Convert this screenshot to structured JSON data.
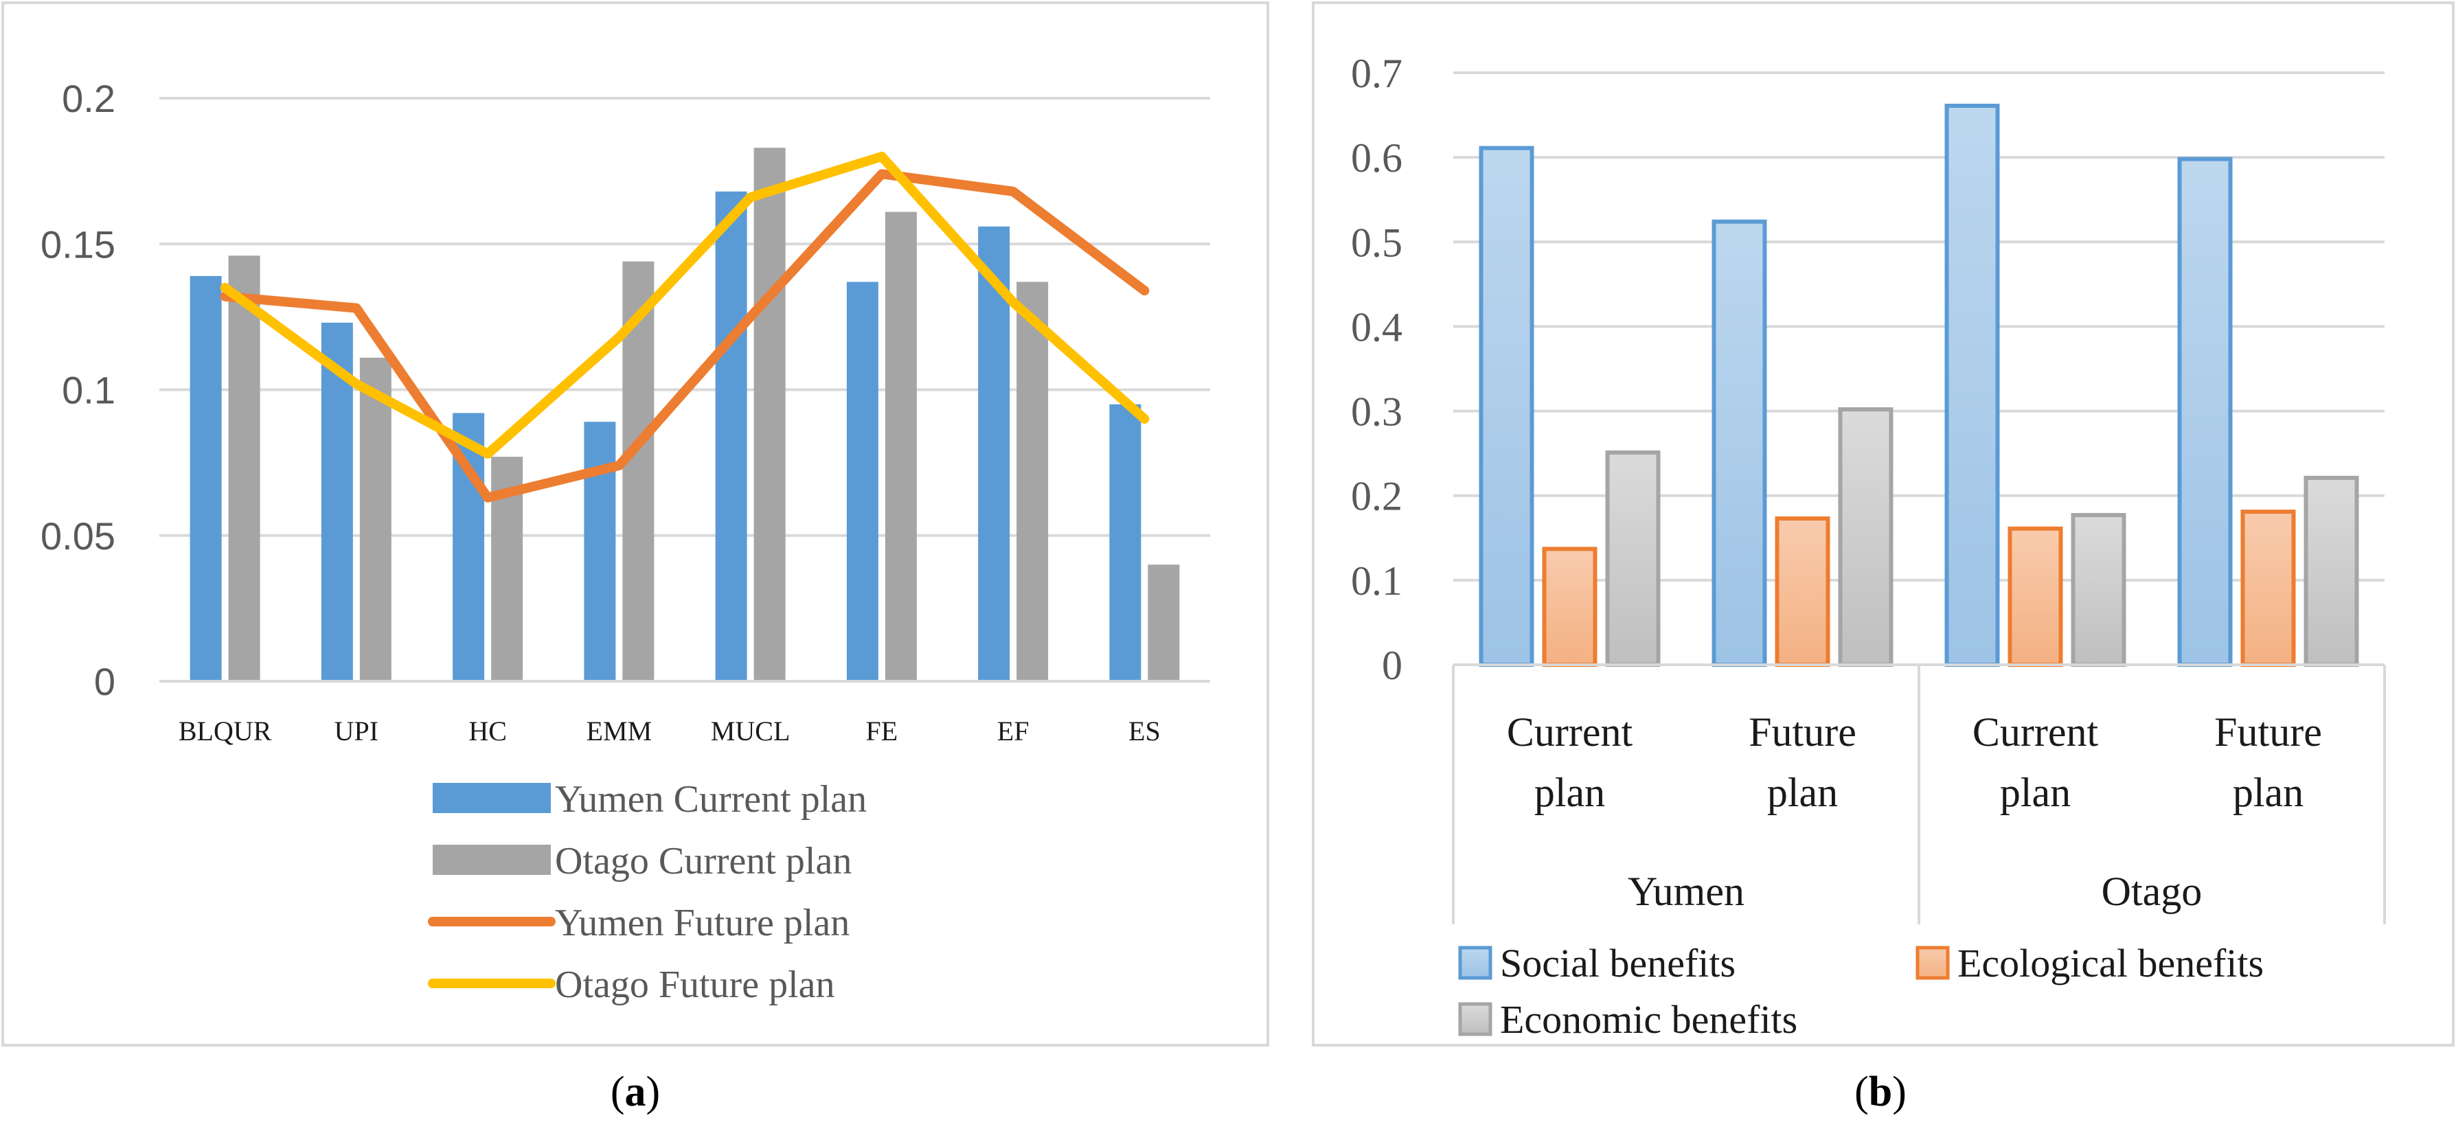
{
  "chart_data": [
    {
      "id": "a",
      "panel_label": "a",
      "type": "bar+line",
      "categories": [
        "BLQUR",
        "UPI",
        "HC",
        "EMM",
        "MUCL",
        "FE",
        "EF",
        "ES"
      ],
      "yticks": [
        "0",
        "0.05",
        "0.1",
        "0.15",
        "0.2"
      ],
      "ylim": [
        0,
        0.2
      ],
      "bar_series": [
        {
          "name": "Yumen Current plan",
          "color": "#5B9BD5",
          "values": [
            0.139,
            0.123,
            0.092,
            0.089,
            0.168,
            0.137,
            0.156,
            0.095
          ]
        },
        {
          "name": "Otago Current plan",
          "color": "#A5A5A5",
          "values": [
            0.146,
            0.111,
            0.077,
            0.144,
            0.183,
            0.161,
            0.137,
            0.04
          ]
        }
      ],
      "line_series": [
        {
          "name": "Yumen Future plan",
          "color": "#ED7D31",
          "values": [
            0.132,
            0.128,
            0.063,
            0.074,
            0.125,
            0.174,
            0.168,
            0.134
          ]
        },
        {
          "name": "Otago Future plan",
          "color": "#FFC000",
          "values": [
            0.135,
            0.102,
            0.078,
            0.118,
            0.166,
            0.18,
            0.13,
            0.09
          ]
        }
      ],
      "legend": [
        {
          "label": "Yumen Current plan",
          "kind": "bar",
          "color": "#5B9BD5"
        },
        {
          "label": "Otago Current plan",
          "kind": "bar",
          "color": "#A5A5A5"
        },
        {
          "label": "Yumen Future plan",
          "kind": "line",
          "color": "#ED7D31"
        },
        {
          "label": "Otago Future plan",
          "kind": "line",
          "color": "#FFC000"
        }
      ]
    },
    {
      "id": "b",
      "panel_label": "b",
      "type": "bar",
      "groups": [
        {
          "label": "Yumen",
          "categories": [
            [
              "Current",
              "plan"
            ],
            [
              "Future",
              "plan"
            ]
          ]
        },
        {
          "label": "Otago",
          "categories": [
            [
              "Current",
              "plan"
            ],
            [
              "Future",
              "plan"
            ]
          ]
        }
      ],
      "yticks": [
        "0",
        "0.1",
        "0.2",
        "0.3",
        "0.4",
        "0.5",
        "0.6",
        "0.7"
      ],
      "ylim": [
        0,
        0.7
      ],
      "series": [
        {
          "name": "Social benefits",
          "fill_top": "#BDD7EE",
          "fill_bottom": "#9DC3E6",
          "stroke": "#5B9BD5",
          "values": [
            0.611,
            0.524,
            0.661,
            0.598
          ]
        },
        {
          "name": "Ecological benefits",
          "fill_top": "#F8CBAD",
          "fill_bottom": "#F4B183",
          "stroke": "#ED7D31",
          "values": [
            0.137,
            0.173,
            0.161,
            0.181
          ]
        },
        {
          "name": "Economic benefits",
          "fill_top": "#DBDBDB",
          "fill_bottom": "#BFBFBF",
          "stroke": "#A5A5A5",
          "values": [
            0.251,
            0.302,
            0.177,
            0.221
          ]
        }
      ]
    }
  ]
}
